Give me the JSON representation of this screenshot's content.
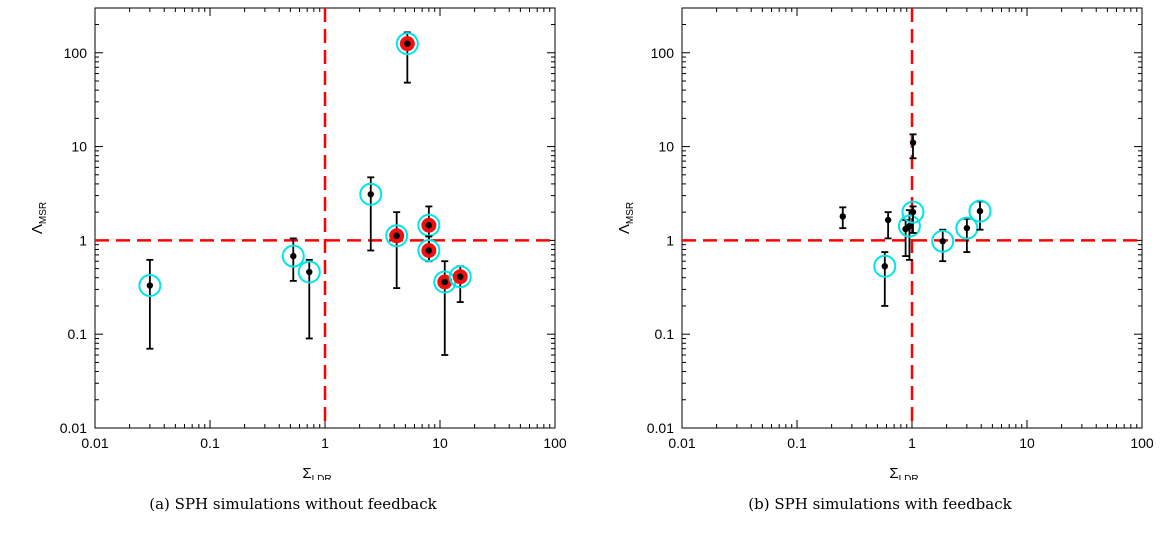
{
  "colors": {
    "refline": "#ff0000",
    "ring": "#00e5e5",
    "fill": "#ee1111",
    "point": "#000000"
  },
  "chart_data": [
    {
      "type": "scatter",
      "caption": "(a) SPH simulations without feedback",
      "xlabel": "Σ",
      "xlabel_sub": "LDR",
      "ylabel": "Λ",
      "ylabel_sub": "MSR",
      "xscale": "log",
      "yscale": "log",
      "xlim": [
        0.01,
        100
      ],
      "ylim": [
        0.01,
        300
      ],
      "xticks": [
        {
          "v": 0.01,
          "label": "0.01"
        },
        {
          "v": 0.1,
          "label": "0.1"
        },
        {
          "v": 1,
          "label": "1"
        },
        {
          "v": 10,
          "label": "10"
        },
        {
          "v": 100,
          "label": "100"
        }
      ],
      "yticks": [
        {
          "v": 0.01,
          "label": "0.01"
        },
        {
          "v": 0.1,
          "label": "0.1"
        },
        {
          "v": 1,
          "label": "1"
        },
        {
          "v": 10,
          "label": "10"
        },
        {
          "v": 100,
          "label": "100"
        }
      ],
      "reference_lines": {
        "x": 1,
        "y": 1
      },
      "points": [
        {
          "x": 0.03,
          "y": 0.33,
          "ylo": 0.07,
          "yhi": 0.62,
          "ring": true,
          "filled": false
        },
        {
          "x": 0.53,
          "y": 0.68,
          "ylo": 0.37,
          "yhi": 1.05,
          "ring": true,
          "filled": false
        },
        {
          "x": 0.73,
          "y": 0.46,
          "ylo": 0.09,
          "yhi": 0.62,
          "ring": true,
          "filled": false
        },
        {
          "x": 2.5,
          "y": 3.1,
          "ylo": 0.78,
          "yhi": 4.7,
          "ring": true,
          "filled": false
        },
        {
          "x": 4.2,
          "y": 1.12,
          "ylo": 0.31,
          "yhi": 2.0,
          "ring": true,
          "filled": true
        },
        {
          "x": 5.2,
          "y": 125,
          "ylo": 48,
          "yhi": 165,
          "ring": true,
          "filled": true
        },
        {
          "x": 8.0,
          "y": 1.45,
          "ylo": 0.6,
          "yhi": 2.3,
          "ring": true,
          "filled": true
        },
        {
          "x": 8.0,
          "y": 0.78,
          "ylo": 0.6,
          "yhi": 1.1,
          "ring": true,
          "filled": true
        },
        {
          "x": 11.0,
          "y": 0.36,
          "ylo": 0.06,
          "yhi": 0.6,
          "ring": true,
          "filled": true
        },
        {
          "x": 15.0,
          "y": 0.41,
          "ylo": 0.22,
          "yhi": 0.53,
          "ring": true,
          "filled": true
        }
      ]
    },
    {
      "type": "scatter",
      "caption": "(b) SPH simulations with feedback",
      "xlabel": "Σ",
      "xlabel_sub": "LDR",
      "ylabel": "Λ",
      "ylabel_sub": "MSR",
      "xscale": "log",
      "yscale": "log",
      "xlim": [
        0.01,
        100
      ],
      "ylim": [
        0.01,
        300
      ],
      "xticks": [
        {
          "v": 0.01,
          "label": "0.01"
        },
        {
          "v": 0.1,
          "label": "0.1"
        },
        {
          "v": 1,
          "label": "1"
        },
        {
          "v": 10,
          "label": "10"
        },
        {
          "v": 100,
          "label": "100"
        }
      ],
      "yticks": [
        {
          "v": 0.01,
          "label": "0.01"
        },
        {
          "v": 0.1,
          "label": "0.1"
        },
        {
          "v": 1,
          "label": "1"
        },
        {
          "v": 10,
          "label": "10"
        },
        {
          "v": 100,
          "label": "100"
        }
      ],
      "reference_lines": {
        "x": 1,
        "y": 1
      },
      "points": [
        {
          "x": 0.25,
          "y": 1.8,
          "ylo": 1.35,
          "yhi": 2.25,
          "ring": false,
          "filled": false
        },
        {
          "x": 0.58,
          "y": 0.53,
          "ylo": 0.2,
          "yhi": 0.75,
          "ring": true,
          "filled": false
        },
        {
          "x": 0.62,
          "y": 1.65,
          "ylo": 1.05,
          "yhi": 2.0,
          "ring": false,
          "filled": false
        },
        {
          "x": 0.88,
          "y": 1.32,
          "ylo": 0.68,
          "yhi": 1.65,
          "ring": false,
          "filled": false
        },
        {
          "x": 0.95,
          "y": 1.42,
          "ylo": 0.62,
          "yhi": 2.1,
          "ring": true,
          "filled": false
        },
        {
          "x": 1.02,
          "y": 2.0,
          "ylo": 1.2,
          "yhi": 2.3,
          "ring": true,
          "filled": false
        },
        {
          "x": 1.02,
          "y": 11.0,
          "ylo": 7.5,
          "yhi": 13.5,
          "ring": false,
          "filled": false
        },
        {
          "x": 1.85,
          "y": 0.98,
          "ylo": 0.6,
          "yhi": 1.3,
          "ring": true,
          "filled": false
        },
        {
          "x": 3.0,
          "y": 1.35,
          "ylo": 0.75,
          "yhi": 1.7,
          "ring": true,
          "filled": false
        },
        {
          "x": 3.9,
          "y": 2.05,
          "ylo": 1.3,
          "yhi": 2.6,
          "ring": true,
          "filled": false
        }
      ]
    }
  ]
}
